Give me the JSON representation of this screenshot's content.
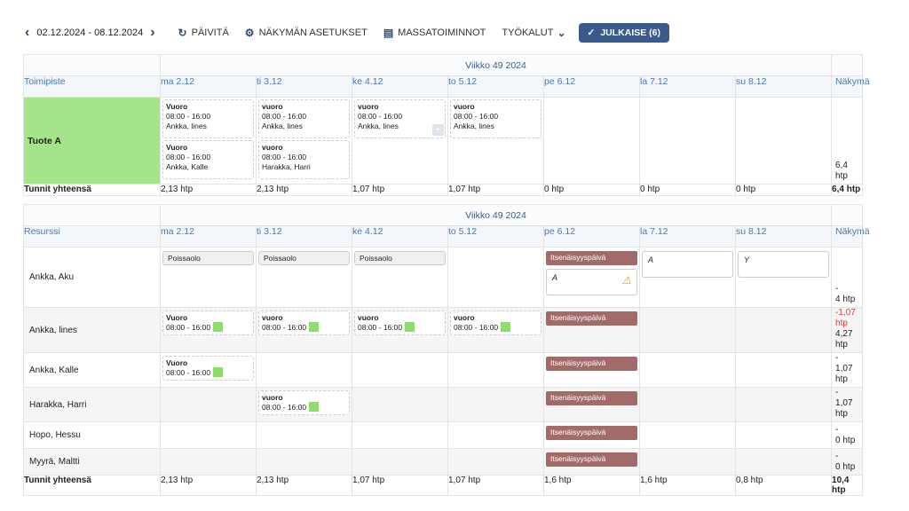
{
  "toolbar": {
    "date_range": "02.12.2024 - 08.12.2024",
    "refresh": "PÄIVITÄ",
    "view_settings": "NÄKYMÄN ASETUKSET",
    "mass_actions": "MASSATOIMINNOT",
    "tools": "TYÖKALUT",
    "publish": "JULKAISE (6)"
  },
  "week_label": "Viikko 49 2024",
  "days": [
    "ma 2.12",
    "ti 3.12",
    "ke 4.12",
    "to 5.12",
    "pe 6.12",
    "la 7.12",
    "su 8.12"
  ],
  "view_col": "Näkymä",
  "unit_table": {
    "first_col": "Toimipiste",
    "unit_name": "Tuote A",
    "row1": [
      {
        "title": "Vuoro",
        "time": "08:00 - 16:00",
        "person": "Ankka, lines"
      },
      {
        "title": "vuoro",
        "time": "08:00 - 16:00",
        "person": "Ankka, lines"
      },
      {
        "title": "vuoro",
        "time": "08:00 - 16:00",
        "person": "Ankka, lines"
      },
      {
        "title": "vuoro",
        "time": "08:00 - 16:00",
        "person": "Ankka, lines"
      }
    ],
    "row2": [
      {
        "title": "Vuoro",
        "time": "08:00 - 16:00",
        "person": "Ankka, Kalle"
      },
      {
        "title": "vuoro",
        "time": "08:00 - 16:00",
        "person": "Harakka, Harri"
      }
    ],
    "view_value": "6,4 htp",
    "total_label": "Tunnit yhteensä",
    "totals": [
      "2,13 htp",
      "2,13 htp",
      "1,07 htp",
      "1,07 htp",
      "0 htp",
      "0 htp",
      "0 htp",
      "6,4 htp"
    ]
  },
  "resource_table": {
    "first_col": "Resurssi",
    "absence_label": "Poissaolo",
    "independence_label": "Itsenäisyyspäivä",
    "shift_upper": "Vuoro",
    "shift_lower": "vuoro",
    "shift_time": "08:00 - 16:00",
    "notes": {
      "pe": "A",
      "la": "A",
      "su": "Y"
    },
    "rows": [
      {
        "name": "Ankka, Aku",
        "view_top": "-",
        "view_bottom": "4 htp"
      },
      {
        "name": "Ankka, lines",
        "view_top": "-1,07 htp",
        "view_bottom": "4,27 htp"
      },
      {
        "name": "Ankka, Kalle",
        "view_top": "-",
        "view_bottom": "1,07 htp"
      },
      {
        "name": "Harakka, Harri",
        "view_top": "-",
        "view_bottom": "1,07 htp"
      },
      {
        "name": "Hopo, Hessu",
        "view_top": "-",
        "view_bottom": "0 htp"
      },
      {
        "name": "Myyrä, Maltti",
        "view_top": "-",
        "view_bottom": "0 htp"
      }
    ],
    "total_label": "Tunnit yhteensä",
    "totals": [
      "2,13 htp",
      "2,13 htp",
      "1,07 htp",
      "1,07 htp",
      "1,6 htp",
      "1,6 htp",
      "0,8 htp",
      "10,4 htp"
    ]
  },
  "colors": {
    "accent": "#3a5a8c",
    "unit_green": "#a5e48a",
    "holiday": "#a36a6a",
    "ok_square": "#8fdc6e",
    "negative": "#e53935"
  }
}
